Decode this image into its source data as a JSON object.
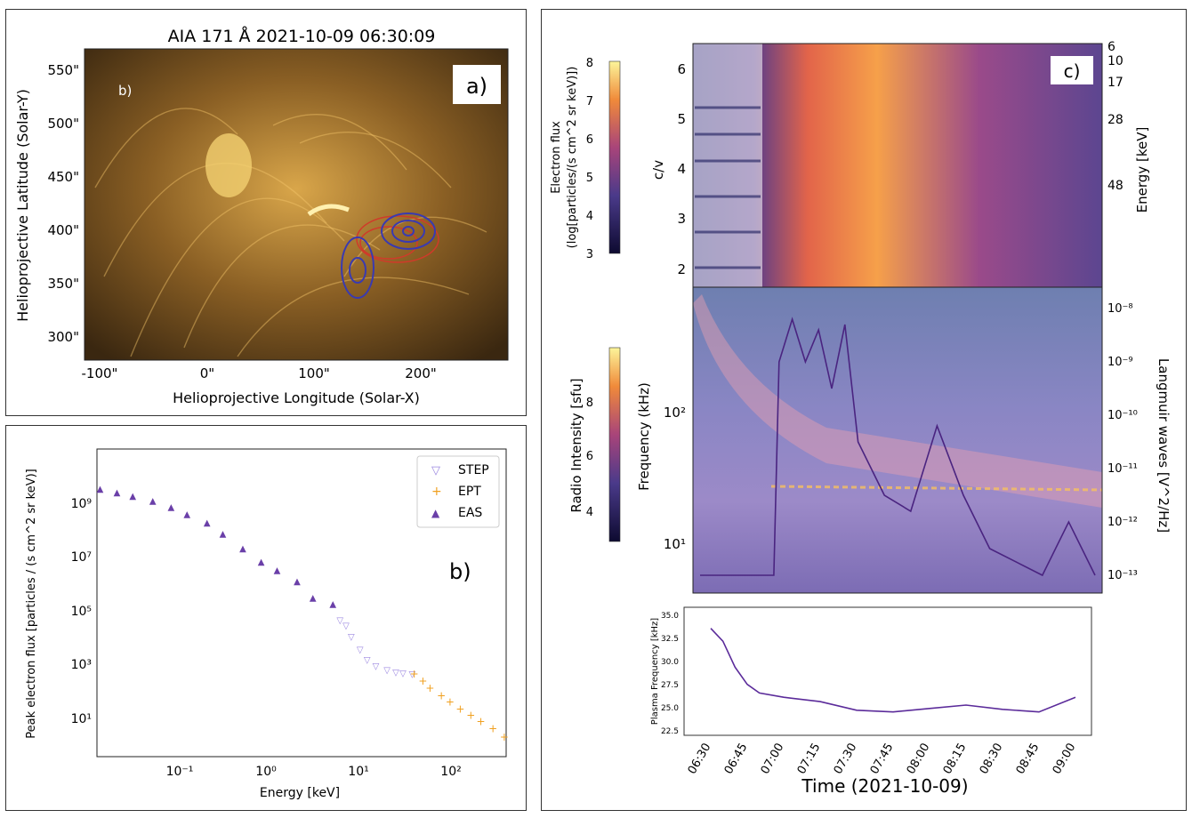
{
  "panel_a": {
    "title": "AIA 171 Å 2021-10-09 06:30:09",
    "letter": "a)",
    "inner_label": "b)",
    "xlabel": "Helioprojective Longitude (Solar-X)",
    "ylabel": "Helioprojective Latitude (Solar-Y)",
    "xticks": [
      "-100\"",
      "0\"",
      "100\"",
      "200\""
    ],
    "yticks": [
      "550\"",
      "500\"",
      "450\"",
      "400\"",
      "350\"",
      "300\""
    ]
  },
  "panel_b": {
    "letter": "b)",
    "xlabel": "Energy [keV]",
    "ylabel": "Peak electron flux [particles / (s cm^2 sr keV)]",
    "xticks": [
      "10⁻¹",
      "10⁰",
      "10¹",
      "10²"
    ],
    "yticks": [
      "10⁹",
      "10⁷",
      "10⁵",
      "10³",
      "10¹"
    ],
    "legend": [
      {
        "label": "STEP",
        "color": "#9b87e0",
        "marker": "▽"
      },
      {
        "label": "EPT",
        "color": "#f0a020",
        "marker": "+"
      },
      {
        "label": "EAS",
        "color": "#6a3fa8",
        "marker": "▲"
      }
    ]
  },
  "panel_c": {
    "letter": "c)",
    "top_colorbar_label_1": "Electron flux",
    "top_colorbar_label_2": "(log[particles/(s cm^2 sr keV)])",
    "top_colorbar_ticks": [
      "8",
      "7",
      "6",
      "5",
      "4",
      "3"
    ],
    "top_ylabel": "c/v",
    "top_yticks": [
      "6",
      "5",
      "4",
      "3",
      "2"
    ],
    "top_right_label": "Energy [keV]",
    "top_right_ticks": [
      "6",
      "10",
      "17",
      "28",
      "48"
    ],
    "mid_colorbar_label": "Radio Intensity [sfu]",
    "mid_colorbar_ticks": [
      "8",
      "6",
      "4"
    ],
    "mid_ylabel": "Frequency (kHz)",
    "mid_yticks": [
      "10²",
      "10¹"
    ],
    "mid_right_label": "Langmuir waves [V^2/Hz]",
    "mid_right_ticks": [
      "10⁻⁸",
      "10⁻⁹",
      "10⁻¹⁰",
      "10⁻¹¹",
      "10⁻¹²",
      "10⁻¹³"
    ],
    "bottom_ylabel": "Plasma Frequency [kHz]",
    "bottom_yticks": [
      "35.0",
      "32.5",
      "30.0",
      "27.5",
      "25.0",
      "22.5"
    ],
    "time_ticks": [
      "06:30",
      "06:45",
      "07:00",
      "07:15",
      "07:30",
      "07:45",
      "08:00",
      "08:15",
      "08:30",
      "08:45",
      "09:00"
    ],
    "xlabel": "Time (2021-10-09)"
  },
  "chart_data": [
    {
      "type": "scatter",
      "panel": "b",
      "xscale": "log",
      "yscale": "log",
      "xlim": [
        0.012,
        420
      ],
      "ylim": [
        1,
        100000000000
      ],
      "series": [
        {
          "name": "EAS",
          "x": [
            0.013,
            0.02,
            0.03,
            0.05,
            0.08,
            0.12,
            0.2,
            0.3,
            0.5,
            0.8,
            1.2,
            2,
            3,
            5
          ],
          "y": [
            4000000000,
            3000000000,
            2200000000,
            1500000000,
            900000000,
            500000000,
            250000000,
            100000000,
            30000000,
            10000000,
            5000000,
            2000000,
            500000,
            300000
          ]
        },
        {
          "name": "STEP",
          "x": [
            6,
            7,
            8,
            10,
            12,
            15,
            20,
            25,
            30,
            38
          ],
          "y": [
            80000,
            50000,
            20000,
            7000,
            3000,
            1800,
            1300,
            1100,
            1000,
            950
          ]
        },
        {
          "name": "EPT",
          "x": [
            40,
            50,
            60,
            80,
            100,
            130,
            170,
            220,
            300,
            400
          ],
          "y": [
            900,
            500,
            280,
            150,
            90,
            50,
            30,
            18,
            10,
            5
          ]
        }
      ]
    },
    {
      "type": "line",
      "panel": "c-bottom",
      "xlabel": "Time (2021-10-09)",
      "ylabel": "Plasma Frequency [kHz]",
      "ylim": [
        22.5,
        35.5
      ],
      "x": [
        "06:30",
        "06:35",
        "06:40",
        "06:45",
        "06:50",
        "07:00",
        "07:15",
        "07:30",
        "07:45",
        "08:00",
        "08:15",
        "08:30",
        "08:45",
        "09:00"
      ],
      "series": [
        {
          "values": [
            34.5,
            33.0,
            30.0,
            28.0,
            27.0,
            26.5,
            26.0,
            25.0,
            24.8,
            25.2,
            25.6,
            25.1,
            24.8,
            26.5
          ]
        }
      ]
    },
    {
      "type": "line",
      "panel": "c-middle-overlay",
      "ylabel": "Langmuir waves [V^2/Hz]",
      "x": [
        "06:30",
        "06:45",
        "06:58",
        "07:00",
        "07:05",
        "07:10",
        "07:15",
        "07:20",
        "07:25",
        "07:30",
        "07:40",
        "07:50",
        "08:00",
        "08:10",
        "08:20",
        "08:40",
        "08:50",
        "09:00"
      ],
      "series": [
        {
          "values_log10": [
            -13.0,
            -13.0,
            -13.0,
            -9.0,
            -8.2,
            -9.0,
            -8.4,
            -9.5,
            -8.3,
            -10.5,
            -11.5,
            -11.8,
            -10.2,
            -11.5,
            -12.5,
            -13.0,
            -12.0,
            -13.0
          ]
        }
      ]
    }
  ]
}
